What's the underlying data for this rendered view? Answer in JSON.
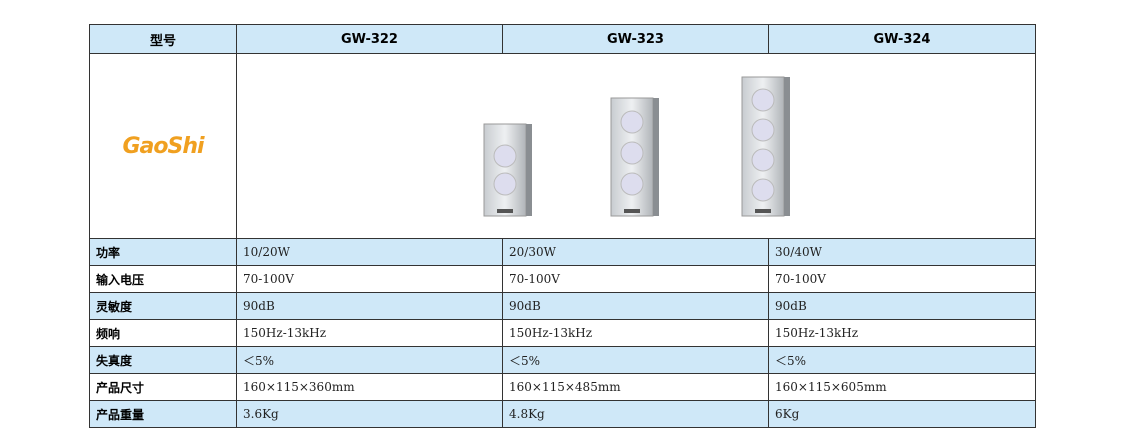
{
  "header": {
    "label": "型号",
    "models": [
      "GW-322",
      "GW-323",
      "GW-324"
    ]
  },
  "logo": "GaoShi",
  "table": {
    "rows": [
      [
        "功率",
        "10/20W",
        "20/30W",
        "30/40W"
      ],
      [
        "输入电压",
        "70-100V",
        "70-100V",
        "70-100V"
      ],
      [
        "灵敏度",
        "90dB",
        "90dB",
        "90dB"
      ],
      [
        "频响",
        "150Hz-13kHz",
        "150Hz-13kHz",
        "150Hz-13kHz"
      ],
      [
        "失真度",
        "＜5%",
        "＜5%",
        "＜5%"
      ],
      [
        "产品尺寸",
        "160×115×360mm",
        "160×115×485mm",
        "160×115×605mm"
      ],
      [
        "产品重量",
        "3.6Kg",
        "4.8Kg",
        "6Kg"
      ]
    ]
  }
}
